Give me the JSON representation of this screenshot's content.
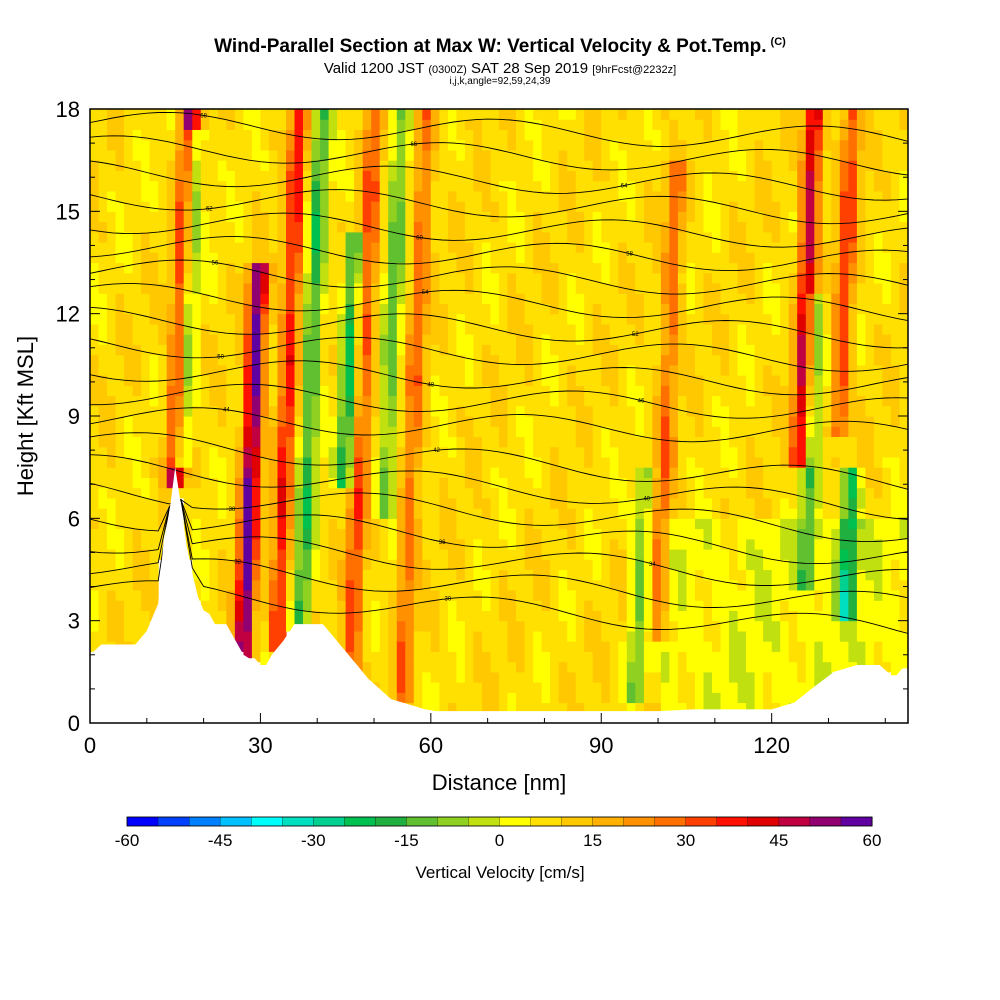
{
  "header": {
    "title": "Wind-Parallel Section at Max W: Vertical Velocity & Pot.Temp.",
    "copyright": "(C)",
    "valid_prefix": "Valid 1200 JST",
    "valid_utc": "(0300Z)",
    "valid_date": "SAT 28 Sep 2019",
    "forecast_info": "[9hrFcst@2232z]",
    "indices": "i,j,k,angle=92,59,24,39"
  },
  "chart_data": {
    "type": "heatmap",
    "xlabel": "Distance [nm]",
    "ylabel": "Height [Kft MSL]",
    "xlim": [
      0,
      144
    ],
    "ylim": [
      0,
      18
    ],
    "x_ticks": [
      0,
      30,
      60,
      90,
      120
    ],
    "y_ticks": [
      0,
      3,
      6,
      9,
      12,
      15,
      18
    ],
    "colorbar": {
      "label": "Vertical Velocity [cm/s]",
      "range": [
        -60,
        60
      ],
      "tick_labels": [
        "-60",
        "-45",
        "-30",
        "-15",
        "0",
        "15",
        "30",
        "45",
        "60"
      ],
      "colors": [
        "#0000ff",
        "#0040ff",
        "#0080ff",
        "#00c0ff",
        "#00ffff",
        "#00e0c0",
        "#00d090",
        "#00c050",
        "#20b040",
        "#60c030",
        "#90d020",
        "#c0e010",
        "#ffff00",
        "#ffe000",
        "#ffc800",
        "#ffb000",
        "#ff9000",
        "#ff7000",
        "#ff4000",
        "#ff1000",
        "#e00000",
        "#c00040",
        "#900070",
        "#6000a0"
      ]
    },
    "terrain": [
      [
        0,
        2.0
      ],
      [
        2,
        2.3
      ],
      [
        8,
        2.3
      ],
      [
        10,
        2.7
      ],
      [
        12,
        3.5
      ],
      [
        13,
        5.4
      ],
      [
        14,
        6.2
      ],
      [
        15,
        7.5
      ],
      [
        16,
        6.4
      ],
      [
        17,
        5.2
      ],
      [
        18,
        4.4
      ],
      [
        19,
        3.7
      ],
      [
        20,
        3.3
      ],
      [
        21,
        3.2
      ],
      [
        22,
        2.9
      ],
      [
        24,
        2.9
      ],
      [
        25,
        2.6
      ],
      [
        26,
        2.3
      ],
      [
        27,
        2.0
      ],
      [
        28,
        1.9
      ],
      [
        29,
        1.9
      ],
      [
        30,
        1.7
      ],
      [
        31,
        1.7
      ],
      [
        32,
        2.0
      ],
      [
        34,
        2.4
      ],
      [
        36,
        2.9
      ],
      [
        41,
        2.9
      ],
      [
        43,
        2.5
      ],
      [
        45,
        2.1
      ],
      [
        47,
        1.7
      ],
      [
        49,
        1.3
      ],
      [
        51,
        1.0
      ],
      [
        53,
        0.7
      ],
      [
        55,
        0.6
      ],
      [
        57,
        0.5
      ],
      [
        59,
        0.4
      ],
      [
        61,
        0.35
      ],
      [
        100,
        0.35
      ],
      [
        106,
        0.4
      ],
      [
        120,
        0.4
      ],
      [
        124,
        0.6
      ],
      [
        127,
        1.0
      ],
      [
        131,
        1.5
      ],
      [
        135,
        1.7
      ],
      [
        139,
        1.7
      ],
      [
        141,
        1.4
      ],
      [
        142,
        1.4
      ],
      [
        143,
        1.6
      ],
      [
        144,
        1.6
      ]
    ],
    "updraft_cores": [
      {
        "x": 15,
        "top": 18,
        "bottom": 7.5,
        "w": 45,
        "note": "up"
      },
      {
        "x": 27,
        "top": 13,
        "bottom": 2.2,
        "w": 50,
        "note": "up"
      },
      {
        "x": 33,
        "top": 18,
        "bottom": 2.5,
        "w": 30,
        "note": "up"
      },
      {
        "x": 46,
        "top": 18,
        "bottom": 2.0,
        "w": 25,
        "note": "up"
      },
      {
        "x": 55,
        "top": 18,
        "bottom": 1.0,
        "w": 20,
        "note": "up"
      },
      {
        "x": 100,
        "top": 16,
        "bottom": 3.0,
        "w": 20,
        "note": "up"
      },
      {
        "x": 125,
        "top": 18,
        "bottom": 8.0,
        "w": 40,
        "note": "up"
      },
      {
        "x": 132,
        "top": 18,
        "bottom": 9.0,
        "w": 25,
        "note": "up"
      }
    ],
    "downdraft_cores": [
      {
        "x": 16,
        "top": 17,
        "bottom": 8.0,
        "w": -35
      },
      {
        "x": 37,
        "top": 18,
        "bottom": 2.5,
        "w": -25
      },
      {
        "x": 45,
        "top": 14,
        "bottom": 7.5,
        "w": -30
      },
      {
        "x": 52,
        "top": 18,
        "bottom": 6.5,
        "w": -20
      },
      {
        "x": 96,
        "top": 7,
        "bottom": 1.0,
        "w": -18
      },
      {
        "x": 126,
        "top": 12,
        "bottom": 4.5,
        "w": -20
      },
      {
        "x": 133,
        "top": 7,
        "bottom": 3.5,
        "w": -30
      }
    ],
    "isentrope_labels": [
      "68",
      "66",
      "64",
      "62",
      "60",
      "58",
      "56",
      "54",
      "52",
      "50",
      "48",
      "46",
      "44",
      "42",
      "40",
      "38",
      "36",
      "34",
      "32",
      "30"
    ]
  }
}
